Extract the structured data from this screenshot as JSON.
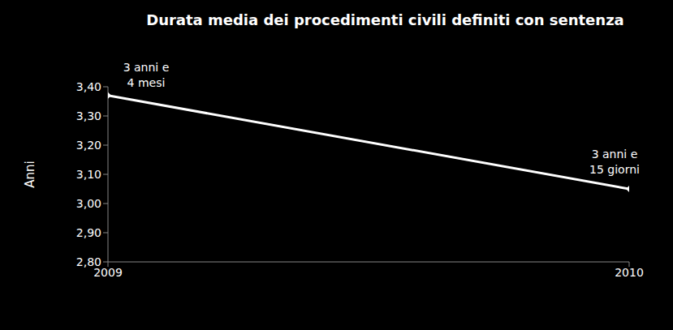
{
  "chart_data": {
    "type": "line",
    "title": "Durata media dei procedimenti civili definiti con sentenza",
    "y_label": "Anni",
    "x": [
      2009,
      2010
    ],
    "xlim": [
      2009,
      2010
    ],
    "xticks": [
      2009,
      2010
    ],
    "values": [
      3.37,
      3.05
    ],
    "value_labels": [
      "3 anni e 4 mesi",
      "3 anni e 15 giorni"
    ],
    "data_labels": true,
    "color": "#ffffff",
    "marker": "diamond",
    "line_style": "solid",
    "ylim": [
      2.8,
      3.4
    ],
    "yticks": [
      {
        "value": 2.8,
        "label": "2,80"
      },
      {
        "value": 2.9,
        "label": "2,90"
      },
      {
        "value": 3.0,
        "label": "3,00"
      },
      {
        "value": 3.1,
        "label": "3,10"
      },
      {
        "value": 3.2,
        "label": "3,20"
      },
      {
        "value": 3.3,
        "label": "3,30"
      },
      {
        "value": 3.4,
        "label": "3,40"
      }
    ],
    "grid": false
  }
}
